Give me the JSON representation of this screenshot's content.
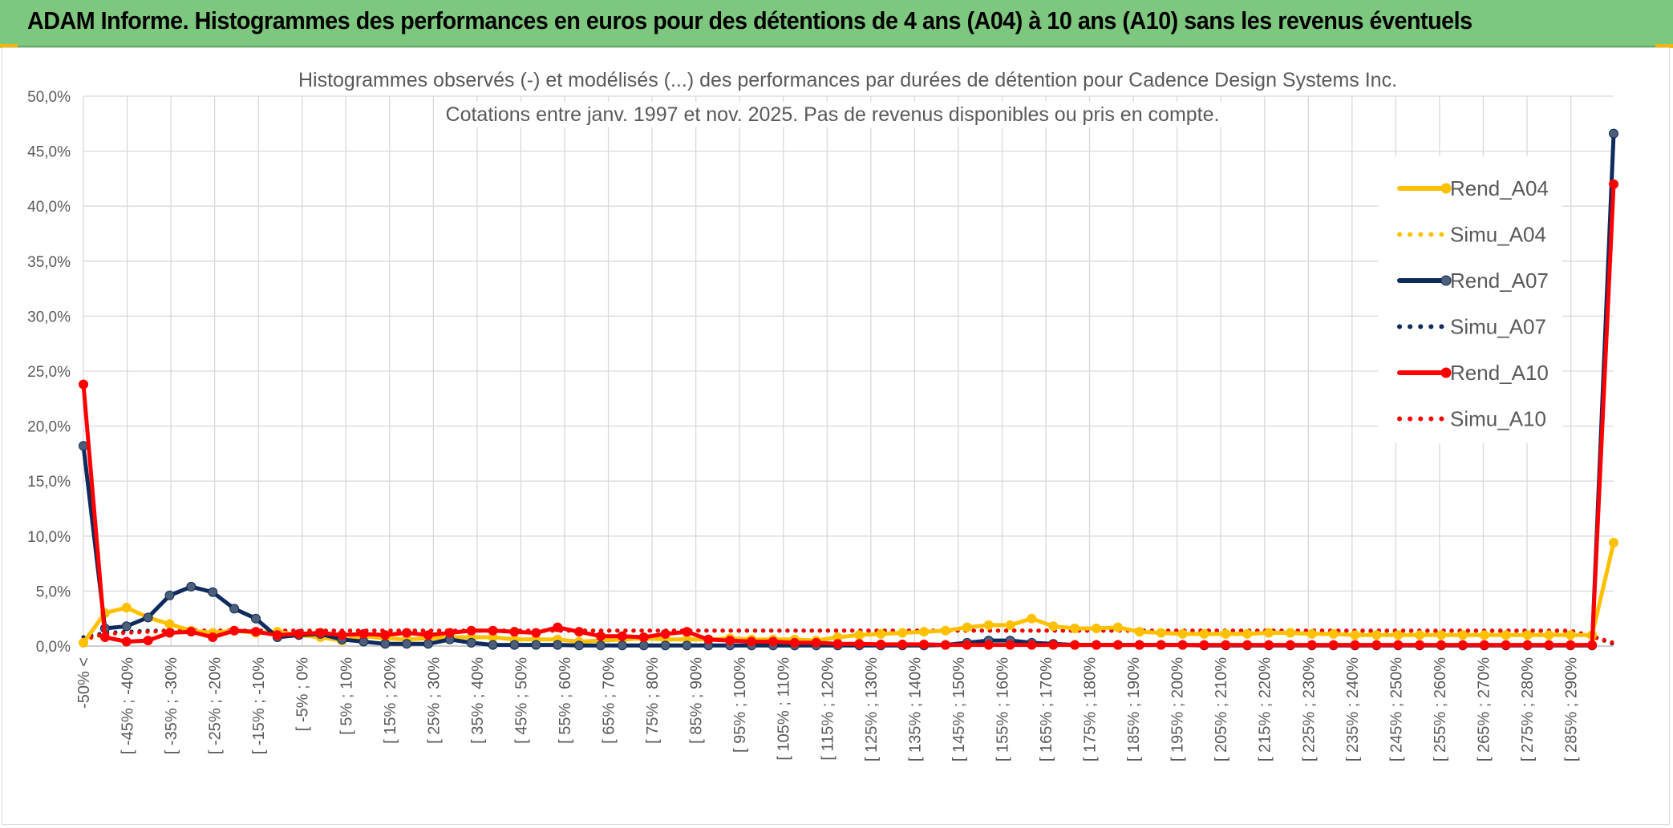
{
  "banner": {
    "title": "ADAM Informe. Histogrammes des performances en euros pour des détentions de 4 ans (A04) à 10 ans (A10) sans les revenus éventuels",
    "background": "#7dc77f",
    "corner_color": "#f2b705"
  },
  "chart_data": {
    "type": "line",
    "title": "Histogrammes observés (-) et modélisés (...) des performances par durées de détention pour Cadence Design Systems Inc.",
    "subtitle": "Cotations entre janv. 1997 et nov. 2025. Pas de revenus disponibles ou pris en compte.",
    "xlabel": "",
    "ylabel": "",
    "ylim": [
      0,
      50
    ],
    "y_ticks": [
      "0,0%",
      "5,0%",
      "10,0%",
      "15,0%",
      "20,0%",
      "25,0%",
      "30,0%",
      "35,0%",
      "40,0%",
      "45,0%",
      "50,0%"
    ],
    "grid": true,
    "legend_position": "right",
    "x_labels": [
      "-50% <",
      "[ -45% ; -40%",
      "[ -35% ; -30%",
      "[ -25% ; -20%",
      "[ -15% ; -10%",
      "[ -5% ; 0%",
      "[ 5% ; 10%",
      "[ 15% ; 20%",
      "[ 25% ; 30%",
      "[ 35% ; 40%",
      "[ 45% ; 50%",
      "[ 55% ; 60%",
      "[ 65% ; 70%",
      "[ 75% ; 80%",
      "[ 85% ; 90%",
      "[ 95% ; 100%",
      "[ 105% ; 110%",
      "[ 115% ; 120%",
      "[ 125% ; 130%",
      "[ 135% ; 140%",
      "[ 145% ; 150%",
      "[ 155% ; 160%",
      "[ 165% ; 170%",
      "[ 175% ; 180%",
      "[ 185% ; 190%",
      "[ 195% ; 200%",
      "[ 205% ; 210%",
      "[ 215% ; 220%",
      "[ 225% ; 230%",
      "[ 235% ; 240%",
      "[ 245% ; 250%",
      "[ 255% ; 260%",
      "[ 265% ; 270%",
      "[ 275% ; 280%",
      "[ 285% ; 290%"
    ],
    "series": [
      {
        "name": "Rend_A04",
        "color": "#ffc000",
        "style": "solid",
        "markers": true,
        "values": [
          0.3,
          3.0,
          3.5,
          2.6,
          2.0,
          1.4,
          1.2,
          1.4,
          1.2,
          1.3,
          1.0,
          0.8,
          0.5,
          0.9,
          0.7,
          0.6,
          0.7,
          0.8,
          0.8,
          0.8,
          0.6,
          0.6,
          0.6,
          0.4,
          0.5,
          0.6,
          0.7,
          0.6,
          0.6,
          0.6,
          0.7,
          0.6,
          0.6,
          0.6,
          0.5,
          0.8,
          1.0,
          1.1,
          1.2,
          1.3,
          1.4,
          1.7,
          1.9,
          1.9,
          2.5,
          1.8,
          1.6,
          1.6,
          1.7,
          1.3,
          1.2,
          1.1,
          1.1,
          1.1,
          1.1,
          1.2,
          1.2,
          1.1,
          1.1,
          1.0,
          1.0,
          1.0,
          1.0,
          1.0,
          1.0,
          1.0,
          1.0,
          1.0,
          1.0,
          1.0,
          1.0,
          9.4
        ]
      },
      {
        "name": "Simu_A04",
        "color": "#ffc000",
        "style": "dotted",
        "markers": false,
        "values": [
          0.5,
          1.1,
          1.2,
          1.3,
          1.3,
          1.4,
          1.4,
          1.4,
          1.4,
          1.4,
          1.4,
          1.4,
          1.4,
          1.4,
          1.4,
          1.4,
          1.4,
          1.4,
          1.4,
          1.4,
          1.4,
          1.4,
          1.4,
          1.4,
          1.4,
          1.4,
          1.4,
          1.4,
          1.4,
          1.4,
          1.4,
          1.4,
          1.4,
          1.4,
          1.4,
          1.4,
          1.4,
          1.4,
          1.4,
          1.4,
          1.4,
          1.4,
          1.4,
          1.4,
          1.4,
          1.4,
          1.4,
          1.4,
          1.4,
          1.4,
          1.4,
          1.4,
          1.4,
          1.4,
          1.4,
          1.4,
          1.4,
          1.3,
          1.3,
          1.3,
          1.3,
          1.3,
          1.3,
          1.3,
          1.3,
          1.3,
          1.3,
          1.3,
          1.3,
          1.3,
          0.8,
          0.2
        ]
      },
      {
        "name": "Rend_A07",
        "color": "#0f2a5c",
        "style": "solid",
        "markers": true,
        "values": [
          18.2,
          1.6,
          1.8,
          2.6,
          4.6,
          5.4,
          4.9,
          3.4,
          2.5,
          0.8,
          1.0,
          1.1,
          0.6,
          0.4,
          0.2,
          0.2,
          0.2,
          0.6,
          0.3,
          0.1,
          0.1,
          0.1,
          0.1,
          0.05,
          0.05,
          0.05,
          0.05,
          0.05,
          0.05,
          0.05,
          0.05,
          0.05,
          0.05,
          0.05,
          0.05,
          0.05,
          0.05,
          0.05,
          0.05,
          0.05,
          0.1,
          0.3,
          0.5,
          0.5,
          0.3,
          0.2,
          0.1,
          0.1,
          0.1,
          0.1,
          0.1,
          0.1,
          0.05,
          0.05,
          0.05,
          0.05,
          0.05,
          0.05,
          0.05,
          0.05,
          0.05,
          0.05,
          0.05,
          0.05,
          0.05,
          0.05,
          0.05,
          0.05,
          0.05,
          0.05,
          0.05,
          46.6
        ]
      },
      {
        "name": "Simu_A07",
        "color": "#0f2a5c",
        "style": "dotted",
        "markers": false,
        "values": [
          0.8,
          1.2,
          1.3,
          1.4,
          1.4,
          1.4,
          1.4,
          1.4,
          1.4,
          1.4,
          1.4,
          1.4,
          1.4,
          1.4,
          1.4,
          1.4,
          1.4,
          1.4,
          1.4,
          1.4,
          1.4,
          1.4,
          1.4,
          1.4,
          1.4,
          1.4,
          1.4,
          1.4,
          1.4,
          1.4,
          1.4,
          1.4,
          1.4,
          1.4,
          1.4,
          1.4,
          1.4,
          1.4,
          1.4,
          1.4,
          1.4,
          1.4,
          1.4,
          1.4,
          1.4,
          1.4,
          1.4,
          1.4,
          1.4,
          1.4,
          1.4,
          1.4,
          1.4,
          1.4,
          1.4,
          1.4,
          1.4,
          1.4,
          1.4,
          1.4,
          1.4,
          1.4,
          1.4,
          1.4,
          1.4,
          1.4,
          1.4,
          1.4,
          1.4,
          1.4,
          0.9,
          0.2
        ]
      },
      {
        "name": "Rend_A10",
        "color": "#ff0000",
        "style": "solid",
        "markers": true,
        "values": [
          23.8,
          0.8,
          0.4,
          0.5,
          1.2,
          1.3,
          0.8,
          1.4,
          1.3,
          1.0,
          1.1,
          1.2,
          1.0,
          1.1,
          1.0,
          1.2,
          1.0,
          1.2,
          1.4,
          1.4,
          1.3,
          1.2,
          1.7,
          1.3,
          0.9,
          0.9,
          0.8,
          1.1,
          1.3,
          0.6,
          0.5,
          0.4,
          0.4,
          0.3,
          0.3,
          0.2,
          0.2,
          0.15,
          0.15,
          0.15,
          0.1,
          0.1,
          0.1,
          0.1,
          0.1,
          0.1,
          0.1,
          0.1,
          0.1,
          0.1,
          0.1,
          0.1,
          0.1,
          0.1,
          0.1,
          0.1,
          0.1,
          0.1,
          0.1,
          0.1,
          0.1,
          0.1,
          0.1,
          0.1,
          0.1,
          0.1,
          0.1,
          0.1,
          0.1,
          0.1,
          0.1,
          42.0
        ]
      },
      {
        "name": "Simu_A10",
        "color": "#ff0000",
        "style": "dotted",
        "markers": false,
        "values": [
          0.6,
          1.1,
          1.2,
          1.3,
          1.4,
          1.4,
          1.4,
          1.4,
          1.4,
          1.4,
          1.4,
          1.4,
          1.4,
          1.4,
          1.4,
          1.4,
          1.4,
          1.4,
          1.4,
          1.4,
          1.4,
          1.4,
          1.4,
          1.4,
          1.4,
          1.4,
          1.4,
          1.4,
          1.4,
          1.4,
          1.4,
          1.4,
          1.4,
          1.4,
          1.4,
          1.4,
          1.4,
          1.4,
          1.4,
          1.4,
          1.4,
          1.4,
          1.4,
          1.4,
          1.4,
          1.4,
          1.4,
          1.4,
          1.4,
          1.4,
          1.4,
          1.4,
          1.4,
          1.4,
          1.4,
          1.4,
          1.4,
          1.4,
          1.4,
          1.4,
          1.4,
          1.4,
          1.4,
          1.4,
          1.4,
          1.4,
          1.4,
          1.4,
          1.4,
          1.4,
          0.9,
          0.3
        ]
      }
    ]
  }
}
